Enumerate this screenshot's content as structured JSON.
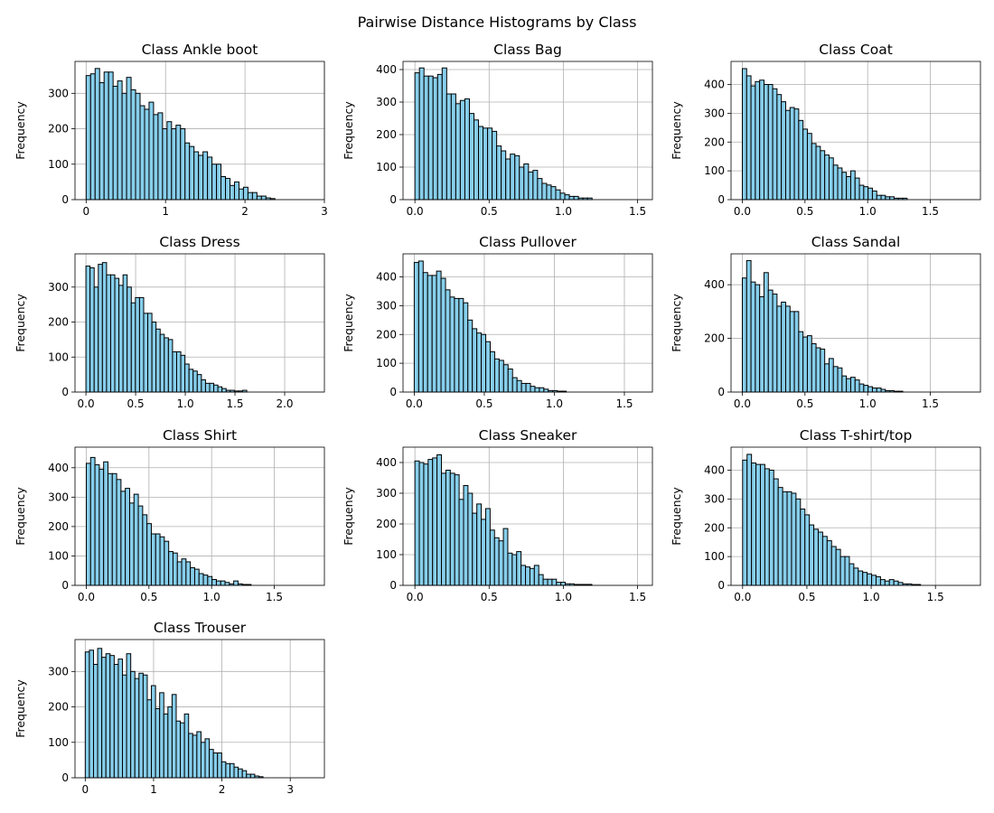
{
  "figure": {
    "suptitle": "Pairwise Distance Histograms by Class",
    "bar_color": "#87CEEB",
    "edge_color": "#000000",
    "grid_color": "#b0b0b0"
  },
  "chart_data": [
    {
      "type": "bar",
      "title": "Class Ankle boot",
      "xlabel": "",
      "ylabel": "Frequency",
      "xlim": [
        -0.14,
        3.0
      ],
      "ylim": [
        0,
        390
      ],
      "xticks": [
        0,
        1,
        2,
        3
      ],
      "yticks": [
        0,
        100,
        200,
        300
      ],
      "bin_width": 0.0566,
      "bin_start": 0.0,
      "values": [
        350,
        355,
        370,
        330,
        360,
        360,
        320,
        335,
        300,
        345,
        310,
        300,
        265,
        255,
        275,
        240,
        245,
        200,
        220,
        200,
        210,
        200,
        160,
        150,
        135,
        125,
        135,
        120,
        100,
        100,
        65,
        60,
        40,
        50,
        30,
        35,
        20,
        20,
        10,
        10,
        5,
        3
      ]
    },
    {
      "type": "bar",
      "title": "Class Bag",
      "xlabel": "",
      "ylabel": "Frequency",
      "xlim": [
        -0.08,
        1.6
      ],
      "ylim": [
        0,
        425
      ],
      "xticks": [
        0.0,
        0.5,
        1.0,
        1.5
      ],
      "yticks": [
        0,
        100,
        200,
        300,
        400
      ],
      "bin_width": 0.0306,
      "bin_start": 0.0,
      "values": [
        390,
        405,
        380,
        380,
        375,
        385,
        405,
        325,
        325,
        295,
        305,
        310,
        265,
        245,
        225,
        220,
        220,
        210,
        165,
        150,
        125,
        140,
        135,
        100,
        110,
        85,
        90,
        65,
        50,
        45,
        40,
        30,
        20,
        15,
        10,
        10,
        5,
        5,
        5
      ]
    },
    {
      "type": "bar",
      "title": "Class Coat",
      "xlabel": "",
      "ylabel": "Frequency",
      "xlim": [
        -0.09,
        1.9
      ],
      "ylim": [
        0,
        480
      ],
      "xticks": [
        0.0,
        0.5,
        1.0,
        1.5
      ],
      "yticks": [
        0,
        100,
        200,
        300,
        400
      ],
      "bin_width": 0.0346,
      "bin_start": 0.0,
      "values": [
        455,
        430,
        395,
        410,
        415,
        400,
        400,
        385,
        365,
        340,
        310,
        320,
        315,
        275,
        245,
        230,
        195,
        185,
        170,
        155,
        145,
        120,
        110,
        95,
        80,
        100,
        75,
        50,
        45,
        40,
        30,
        15,
        15,
        10,
        10,
        5,
        5,
        5
      ]
    },
    {
      "type": "bar",
      "title": "Class Dress",
      "xlabel": "",
      "ylabel": "Frequency",
      "xlim": [
        -0.11,
        2.4
      ],
      "ylim": [
        0,
        395
      ],
      "xticks": [
        0.0,
        0.5,
        1.0,
        1.5,
        2.0
      ],
      "yticks": [
        0,
        100,
        200,
        300
      ],
      "bin_width": 0.0415,
      "bin_start": 0.0,
      "values": [
        360,
        355,
        300,
        365,
        370,
        335,
        335,
        325,
        305,
        335,
        300,
        255,
        270,
        270,
        225,
        225,
        200,
        180,
        165,
        155,
        150,
        115,
        115,
        105,
        80,
        65,
        60,
        50,
        35,
        25,
        25,
        20,
        15,
        10,
        5,
        5,
        3,
        3,
        5
      ]
    },
    {
      "type": "bar",
      "title": "Class Pullover",
      "xlabel": "",
      "ylabel": "Frequency",
      "xlim": [
        -0.08,
        1.7
      ],
      "ylim": [
        0,
        480
      ],
      "xticks": [
        0.0,
        0.5,
        1.0,
        1.5
      ],
      "yticks": [
        0,
        100,
        200,
        300,
        400
      ],
      "bin_width": 0.0319,
      "bin_start": 0.0,
      "values": [
        450,
        455,
        415,
        405,
        405,
        420,
        395,
        355,
        330,
        325,
        325,
        310,
        250,
        220,
        205,
        200,
        175,
        140,
        115,
        110,
        95,
        80,
        50,
        40,
        30,
        30,
        20,
        15,
        15,
        10,
        5,
        5,
        3,
        3
      ]
    },
    {
      "type": "bar",
      "title": "Class Sandal",
      "xlabel": "",
      "ylabel": "Frequency",
      "xlim": [
        -0.09,
        1.9
      ],
      "ylim": [
        0,
        515
      ],
      "xticks": [
        0.0,
        0.5,
        1.0,
        1.5
      ],
      "yticks": [
        0,
        200,
        400
      ],
      "bin_width": 0.0346,
      "bin_start": 0.0,
      "values": [
        425,
        490,
        410,
        400,
        355,
        445,
        380,
        365,
        320,
        335,
        320,
        300,
        300,
        225,
        205,
        210,
        180,
        165,
        160,
        105,
        125,
        95,
        90,
        60,
        50,
        55,
        45,
        30,
        25,
        20,
        15,
        15,
        10,
        5,
        5,
        3,
        3
      ]
    },
    {
      "type": "bar",
      "title": "Class Shirt",
      "xlabel": "",
      "ylabel": "Frequency",
      "xlim": [
        -0.09,
        1.9
      ],
      "ylim": [
        0,
        470
      ],
      "xticks": [
        0.0,
        0.5,
        1.0,
        1.5
      ],
      "yticks": [
        0,
        100,
        200,
        300,
        400
      ],
      "bin_width": 0.0346,
      "bin_start": 0.0,
      "values": [
        415,
        435,
        410,
        395,
        420,
        380,
        380,
        360,
        320,
        330,
        280,
        310,
        270,
        240,
        210,
        175,
        175,
        165,
        150,
        115,
        110,
        80,
        90,
        80,
        60,
        55,
        40,
        35,
        30,
        20,
        15,
        15,
        10,
        5,
        15,
        5,
        3,
        3
      ]
    },
    {
      "type": "bar",
      "title": "Class Sneaker",
      "xlabel": "",
      "ylabel": "Frequency",
      "xlim": [
        -0.08,
        1.6
      ],
      "ylim": [
        0,
        450
      ],
      "xticks": [
        0.0,
        0.5,
        1.0,
        1.5
      ],
      "yticks": [
        0,
        100,
        200,
        300,
        400
      ],
      "bin_width": 0.0298,
      "bin_start": 0.0,
      "values": [
        405,
        400,
        395,
        410,
        415,
        425,
        365,
        375,
        365,
        360,
        280,
        325,
        300,
        235,
        265,
        215,
        250,
        180,
        155,
        145,
        185,
        105,
        100,
        110,
        65,
        60,
        55,
        65,
        35,
        20,
        20,
        20,
        10,
        10,
        5,
        5,
        3,
        3,
        3,
        3
      ]
    },
    {
      "type": "bar",
      "title": "Class T-shirt/top",
      "xlabel": "",
      "ylabel": "Frequency",
      "xlim": [
        -0.09,
        1.85
      ],
      "ylim": [
        0,
        480
      ],
      "xticks": [
        0.0,
        0.5,
        1.0,
        1.5
      ],
      "yticks": [
        0,
        100,
        200,
        300,
        400
      ],
      "bin_width": 0.0346,
      "bin_start": 0.0,
      "values": [
        435,
        455,
        425,
        420,
        420,
        405,
        400,
        370,
        340,
        325,
        325,
        320,
        300,
        265,
        245,
        210,
        195,
        185,
        170,
        155,
        135,
        125,
        100,
        100,
        75,
        60,
        50,
        45,
        40,
        35,
        30,
        20,
        15,
        20,
        15,
        10,
        5,
        5,
        3,
        3
      ]
    },
    {
      "type": "bar",
      "title": "Class Trouser",
      "xlabel": "",
      "ylabel": "Frequency",
      "xlim": [
        -0.15,
        3.5
      ],
      "ylim": [
        0,
        390
      ],
      "xticks": [
        0,
        1,
        2,
        3
      ],
      "yticks": [
        0,
        100,
        200,
        300
      ],
      "bin_width": 0.0605,
      "bin_start": 0.0,
      "values": [
        355,
        360,
        320,
        365,
        340,
        350,
        345,
        320,
        335,
        290,
        350,
        300,
        280,
        295,
        290,
        220,
        260,
        195,
        240,
        180,
        200,
        235,
        160,
        155,
        180,
        125,
        120,
        130,
        100,
        110,
        80,
        70,
        70,
        45,
        40,
        40,
        30,
        25,
        20,
        10,
        10,
        5,
        3
      ]
    }
  ]
}
